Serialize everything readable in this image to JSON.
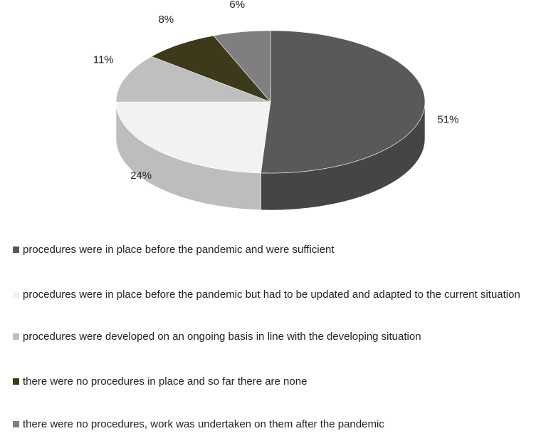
{
  "chart_data": {
    "type": "pie3d",
    "categories": [
      "procedures were in place before the pandemic and were sufficient",
      "procedures were in place before the pandemic but had to be updated and adapted to the current situation",
      "procedures were developed on an ongoing basis in line with the developing situation",
      "there were no procedures in place and so far there are none",
      "there were no procedures, work was undertaken on them after the pandemic"
    ],
    "values": [
      51,
      24,
      11,
      8,
      6
    ],
    "value_labels": [
      "51%",
      "24%",
      "11%",
      "8%",
      "6%"
    ],
    "colors": [
      "#595959",
      "#f2f2f2",
      "#bfbfbf",
      "#3d3a1c",
      "#7f7f7f"
    ],
    "legend": "bottom"
  }
}
